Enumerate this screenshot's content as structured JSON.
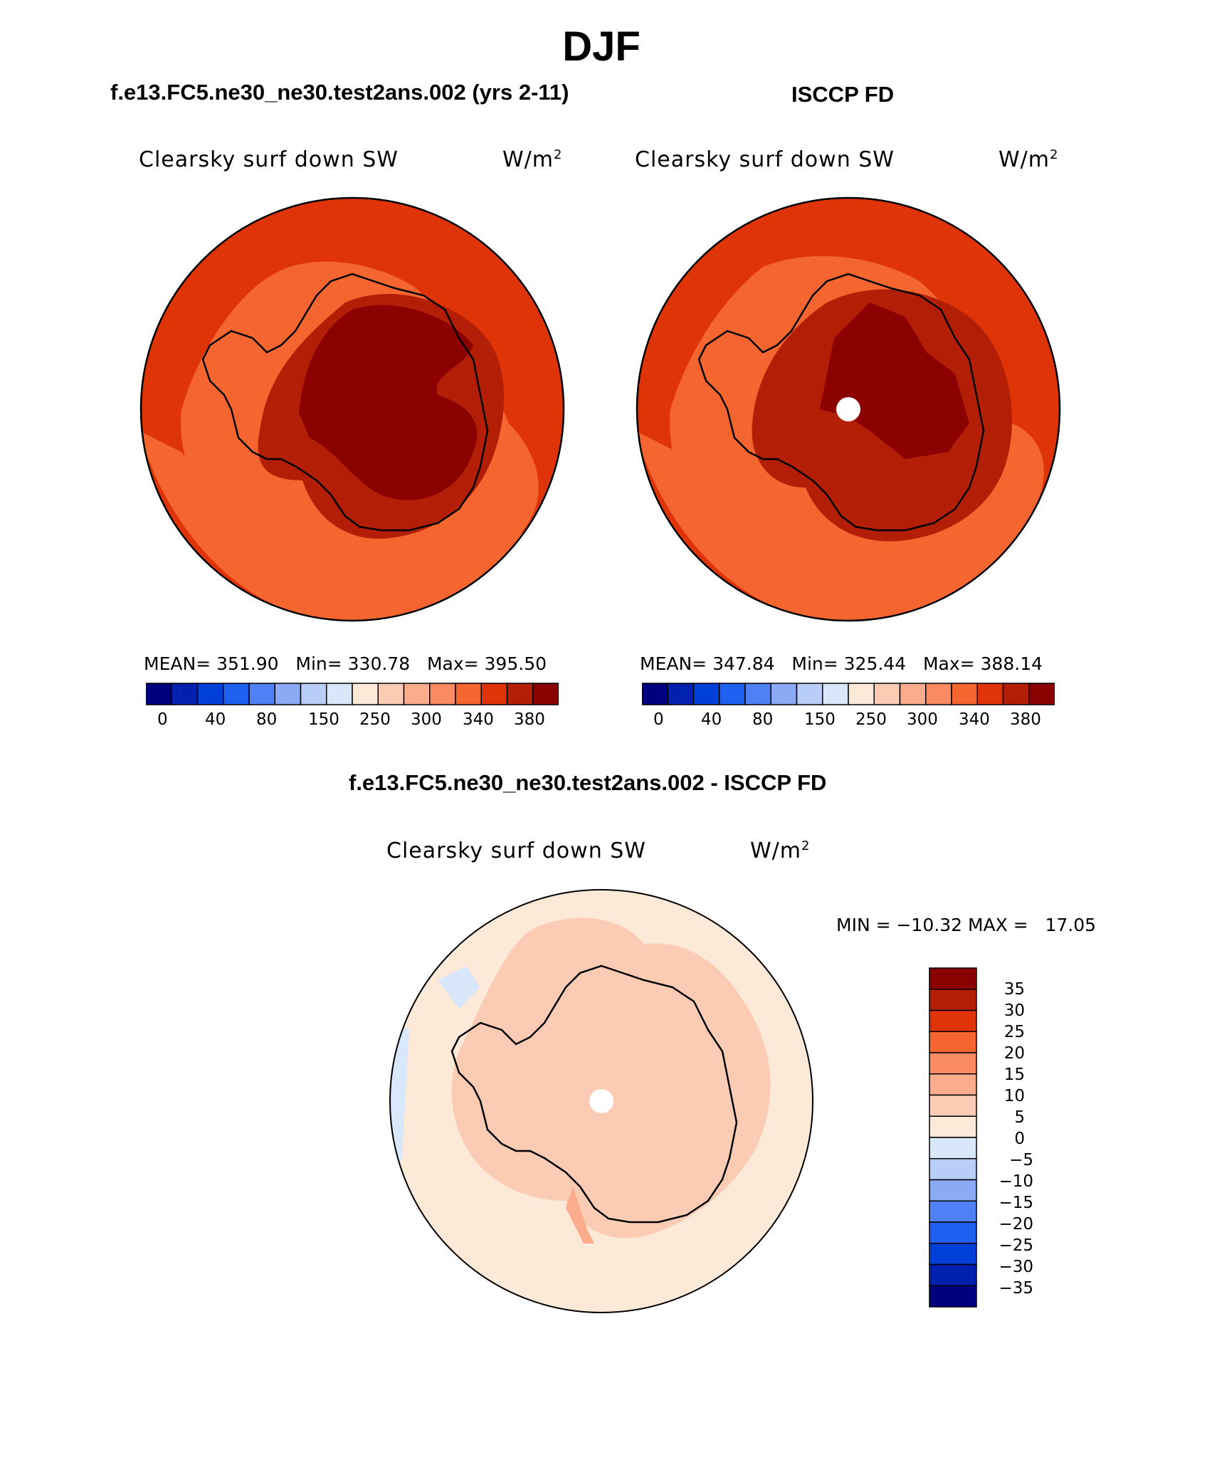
{
  "figure": {
    "title": "DJF",
    "panel_left": {
      "case_title": "f.e13.FC5.ne30_ne30.test2ans.002 (yrs 2-11)",
      "variable": "Clearsky surf down SW",
      "units_base": "W/m",
      "units_exp": "2",
      "stats": "MEAN= 351.90   Min= 330.78   Max= 395.50"
    },
    "panel_right": {
      "case_title": "ISCCP FD",
      "variable": "Clearsky surf down SW",
      "units_base": "W/m",
      "units_exp": "2",
      "stats": "MEAN= 347.84   Min= 325.44   Max= 388.14"
    },
    "panel_diff": {
      "case_title": "f.e13.FC5.ne30_ne30.test2ans.002 - ISCCP FD",
      "variable": "Clearsky surf down SW",
      "units_base": "W/m",
      "units_exp": "2",
      "stats": "MIN = −10.32 MAX =   17.05"
    },
    "colorbar_abs": {
      "colors": [
        "#00007f",
        "#0020b0",
        "#0040d8",
        "#2060f0",
        "#4f80f5",
        "#8aaaf6",
        "#b8cdf8",
        "#d9e7fa",
        "#fde9d8",
        "#fccbb3",
        "#fbac8c",
        "#f98a62",
        "#f5652f",
        "#df3308",
        "#b31e06",
        "#8b0000"
      ],
      "tick_labels": [
        "0",
        "40",
        "80",
        "150",
        "250",
        "300",
        "340",
        "380"
      ]
    },
    "colorbar_diff": {
      "colors": [
        "#00007f",
        "#0020b0",
        "#0040d8",
        "#2060f0",
        "#4f80f5",
        "#8aaaf6",
        "#b8cdf8",
        "#d9e7fa",
        "#fde9d8",
        "#fccbb3",
        "#fbac8c",
        "#f98a62",
        "#f5652f",
        "#df3308",
        "#b31e06",
        "#8b0000"
      ],
      "tick_labels": [
        "35",
        "30",
        "25",
        "20",
        "15",
        "10",
        "5",
        "0",
        "−5",
        "−10",
        "−15",
        "−20",
        "−25",
        "−30",
        "−35"
      ]
    }
  }
}
